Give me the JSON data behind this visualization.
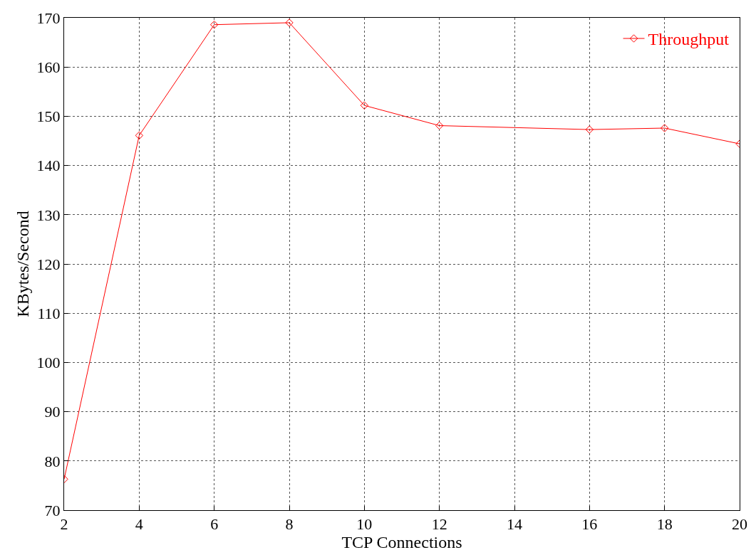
{
  "chart_data": {
    "type": "line",
    "xlabel": "TCP Connections",
    "ylabel": "KBytes/Second",
    "x": [
      2,
      4,
      6,
      8,
      10,
      12,
      16,
      18,
      20
    ],
    "series": [
      {
        "name": "Throughput",
        "color": "#ff0000",
        "values": [
          76.3,
          146.1,
          168.6,
          169.0,
          152.2,
          148.1,
          147.3,
          147.6,
          144.4
        ]
      }
    ],
    "xlim": [
      2,
      20
    ],
    "xticks": [
      2,
      4,
      6,
      8,
      10,
      12,
      14,
      16,
      18,
      20
    ],
    "ylim": [
      70,
      170
    ],
    "yticks": [
      70,
      80,
      90,
      100,
      110,
      120,
      130,
      140,
      150,
      160,
      170
    ],
    "grid": true,
    "legend": "top right",
    "marker": "diamond",
    "line_style": "solid"
  }
}
